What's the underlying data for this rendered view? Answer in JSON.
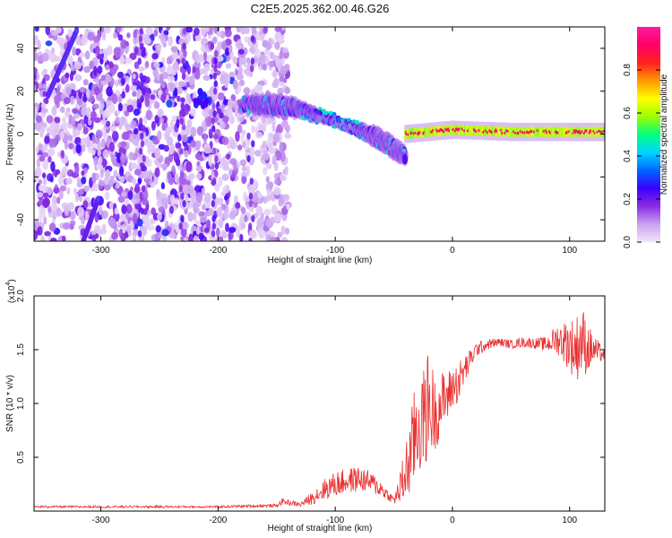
{
  "title": "C2E5.2025.362.00.46.G26",
  "chart_data": [
    {
      "type": "heatmap",
      "name": "spectrogram",
      "xlabel": "Height of straight line (km)",
      "ylabel": "Frequency (Hz)",
      "xlim": [
        -357,
        130
      ],
      "ylim": [
        -50,
        50
      ],
      "xticks": [
        -300,
        -200,
        -100,
        0,
        100
      ],
      "yticks": [
        -40,
        -20,
        0,
        20,
        40
      ],
      "colorbar": {
        "label": "Normalized spectral amplitude",
        "range": [
          0,
          1
        ],
        "ticks": [
          "0.0",
          "0.2",
          "0.4",
          "0.6",
          "0.8"
        ],
        "colors": [
          "#f2e6fa",
          "#c9a3f0",
          "#8a2be2",
          "#3b00ff",
          "#0066ff",
          "#00d5ff",
          "#00ff80",
          "#9cff00",
          "#ffff00",
          "#ff9900",
          "#ff2020",
          "#ff0066",
          "#ff1aa0"
        ]
      },
      "features": [
        {
          "name": "noise-region",
          "x_range": [
            -357,
            -140
          ],
          "freq_range": [
            -50,
            50
          ],
          "amplitude": 0.1
        },
        {
          "name": "diagonal-streak-upper",
          "x": [
            -345,
            -320
          ],
          "freq": [
            18,
            49
          ],
          "amplitude": 0.35
        },
        {
          "name": "diagonal-streak-lower",
          "x": [
            -315,
            -302
          ],
          "freq": [
            -50,
            -30
          ],
          "amplitude": 0.35
        },
        {
          "name": "tone-descending",
          "x": [
            -180,
            -140,
            -100,
            -70,
            -40
          ],
          "freq": [
            14,
            13,
            6,
            0,
            -10
          ],
          "amplitude": 0.35
        },
        {
          "name": "tone-steady",
          "x": [
            -40,
            0,
            50,
            100,
            130
          ],
          "freq": [
            0,
            2,
            1,
            1,
            1
          ],
          "amplitude": 0.9
        }
      ]
    },
    {
      "type": "line",
      "name": "snr",
      "xlabel": "Height of straight line (km)",
      "ylabel": "SNR (10 * v/v)",
      "multiplier_label": "(x10",
      "multiplier_exp": "4",
      "xlim": [
        -357,
        130
      ],
      "ylim": [
        0,
        2.0
      ],
      "xticks": [
        -300,
        -200,
        -100,
        0,
        100
      ],
      "yticks": [
        "0.5",
        "1.0",
        "1.5",
        "2.0"
      ],
      "color": "#e83030",
      "series": [
        {
          "name": "SNR",
          "x": [
            -357,
            -300,
            -250,
            -200,
            -160,
            -150,
            -145,
            -130,
            -120,
            -110,
            -100,
            -90,
            -80,
            -70,
            -60,
            -55,
            -50,
            -45,
            -40,
            -35,
            -30,
            -25,
            -20,
            -15,
            -10,
            -5,
            0,
            5,
            10,
            15,
            20,
            30,
            40,
            50,
            60,
            70,
            80,
            90,
            100,
            105,
            110,
            115,
            120,
            130
          ],
          "y": [
            0.04,
            0.04,
            0.04,
            0.04,
            0.05,
            0.05,
            0.09,
            0.06,
            0.12,
            0.2,
            0.25,
            0.28,
            0.3,
            0.27,
            0.2,
            0.15,
            0.1,
            0.2,
            0.35,
            0.55,
            0.8,
            0.85,
            1.0,
            0.9,
            1.0,
            1.05,
            1.15,
            1.2,
            1.3,
            1.4,
            1.5,
            1.55,
            1.57,
            1.55,
            1.57,
            1.56,
            1.55,
            1.6,
            1.55,
            1.5,
            1.6,
            1.52,
            1.5,
            1.45
          ],
          "spread": [
            0.01,
            0.01,
            0.01,
            0.01,
            0.015,
            0.015,
            0.03,
            0.02,
            0.06,
            0.1,
            0.12,
            0.12,
            0.12,
            0.1,
            0.08,
            0.05,
            0.04,
            0.15,
            0.3,
            0.4,
            0.55,
            0.45,
            0.55,
            0.35,
            0.3,
            0.25,
            0.2,
            0.2,
            0.15,
            0.1,
            0.07,
            0.05,
            0.04,
            0.04,
            0.05,
            0.05,
            0.07,
            0.15,
            0.25,
            0.3,
            0.35,
            0.25,
            0.15,
            0.05
          ]
        }
      ]
    }
  ]
}
